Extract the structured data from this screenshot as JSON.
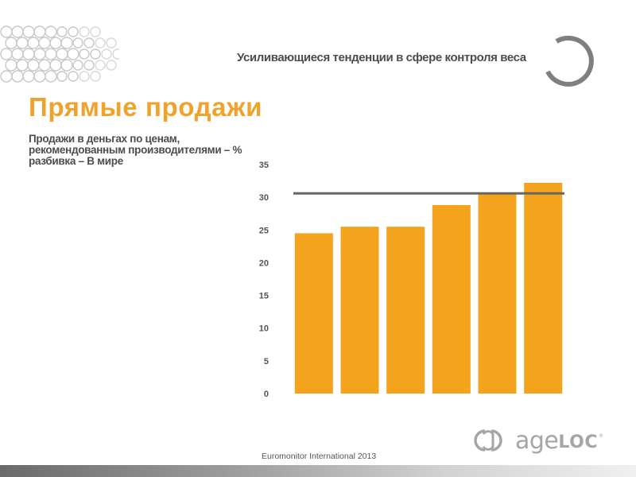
{
  "header": {
    "subtitle": "Усиливающиеся тенденции в сфере контроля веса"
  },
  "page_title": "Прямые продажи",
  "chart_subtitle": "Продажи в деньгах по ценам, рекомендованным производителями – % разбивка – В мире",
  "source": "Euromonitor International 2013",
  "logo": {
    "text_light": "age",
    "text_bold": "LOC",
    "registered": "®"
  },
  "colors": {
    "accent": "#f0a22b",
    "bar": "#f4a31d",
    "reference_line": "#666666",
    "text": "#4d4d4d"
  },
  "chart_data": {
    "type": "bar",
    "title": "",
    "xlabel": "",
    "ylabel": "",
    "categories": [
      "",
      "",
      "",
      "",
      "",
      ""
    ],
    "values": [
      24.5,
      25.5,
      25.5,
      28.8,
      30.5,
      32.2
    ],
    "ylim": [
      0,
      35
    ],
    "yticks": [
      0,
      5,
      10,
      15,
      20,
      25,
      30,
      35
    ],
    "reference_line": 30.6,
    "grid": false,
    "legend": "none"
  }
}
